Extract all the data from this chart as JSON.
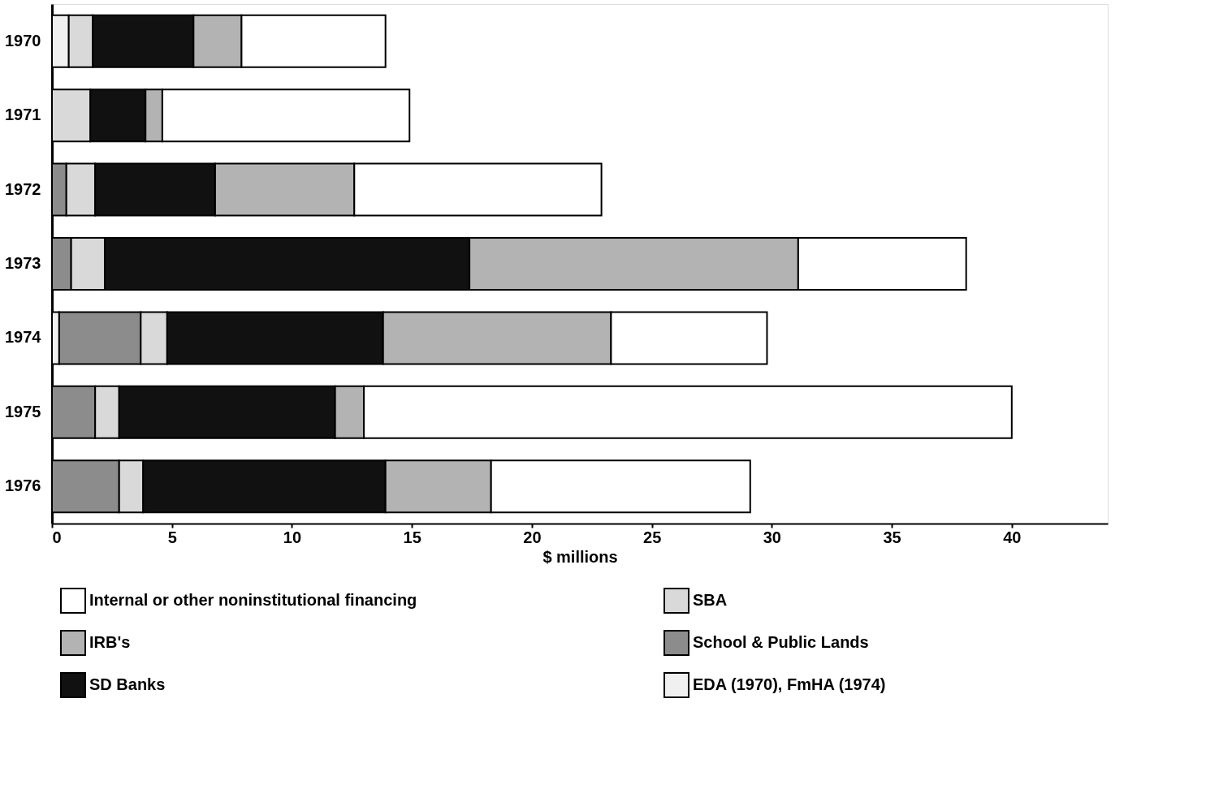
{
  "chart_data": {
    "type": "bar",
    "orientation": "horizontal",
    "stacked": true,
    "categories": [
      "1970",
      "1971",
      "1972",
      "1973",
      "1974",
      "1975",
      "1976"
    ],
    "series": [
      {
        "name": "EDA (1970), FmHA (1974)",
        "color": "#f0f0f0",
        "values": [
          0.7,
          null,
          null,
          null,
          0.3,
          null,
          null
        ]
      },
      {
        "name": "School & Public Lands",
        "color": "#8c8c8c",
        "values": [
          null,
          null,
          0.6,
          0.8,
          3.4,
          1.8,
          2.8
        ]
      },
      {
        "name": "SBA",
        "color": "#d9d9d9",
        "values": [
          1.0,
          1.6,
          1.2,
          1.4,
          1.1,
          1.0,
          1.0
        ]
      },
      {
        "name": "SD Banks",
        "color": "#111111",
        "values": [
          4.2,
          2.3,
          5.0,
          15.2,
          9.0,
          9.0,
          10.1
        ]
      },
      {
        "name": "IRB's",
        "color": "#b3b3b3",
        "values": [
          2.0,
          0.7,
          5.8,
          13.7,
          9.5,
          1.2,
          4.4
        ]
      },
      {
        "name": "Internal or other noninstitutional financing",
        "color": "#ffffff",
        "values": [
          6.0,
          10.3,
          10.3,
          7.0,
          6.5,
          27.0,
          10.8
        ]
      }
    ],
    "xlabel": "$ millions",
    "xlim": [
      0,
      44
    ],
    "xticks": [
      0,
      5,
      10,
      15,
      20,
      25,
      30,
      35,
      40
    ],
    "grid": false,
    "legend": "bottom"
  }
}
